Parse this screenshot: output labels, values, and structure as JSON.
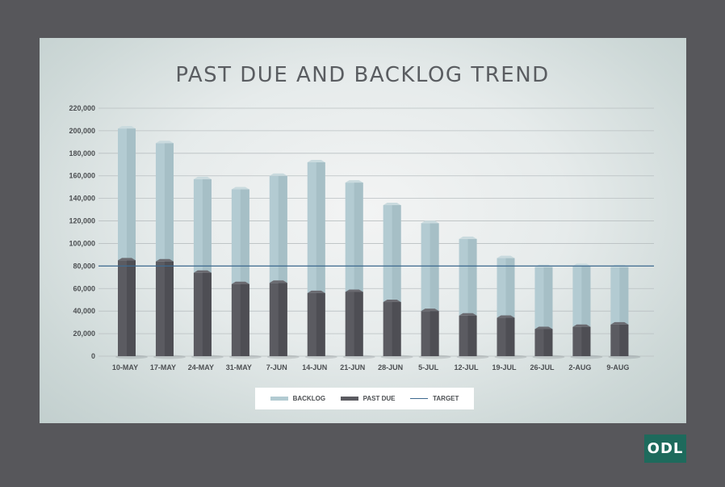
{
  "chart_data": {
    "type": "bar",
    "stacked": true,
    "title": "PAST DUE AND BACKLOG TREND",
    "categories": [
      "10-MAY",
      "17-MAY",
      "24-MAY",
      "31-MAY",
      "7-JUN",
      "14-JUN",
      "21-JUN",
      "28-JUN",
      "5-JUL",
      "12-JUL",
      "19-JUL",
      "26-JUL",
      "2-AUG",
      "9-AUG"
    ],
    "series": [
      {
        "name": "PAST DUE",
        "values": [
          85000,
          84000,
          74000,
          64000,
          65000,
          56000,
          57000,
          48000,
          40000,
          36000,
          34000,
          24000,
          26000,
          28000
        ]
      },
      {
        "name": "BACKLOG",
        "values": [
          117000,
          105000,
          83000,
          84000,
          95000,
          116000,
          97000,
          86000,
          78000,
          68000,
          53000,
          55000,
          54000,
          51000
        ]
      }
    ],
    "target": {
      "name": "TARGET",
      "value": 80000
    },
    "yticks": [
      0,
      20000,
      40000,
      60000,
      80000,
      100000,
      120000,
      140000,
      160000,
      180000,
      200000,
      220000
    ],
    "ylim": [
      0,
      220000
    ],
    "grid": true,
    "legend_position": "bottom",
    "colors": {
      "backlog": "#b3cbd2",
      "past_due": "#5b5b61",
      "target": "#3e6a8f"
    }
  },
  "logo_text": "ODL"
}
